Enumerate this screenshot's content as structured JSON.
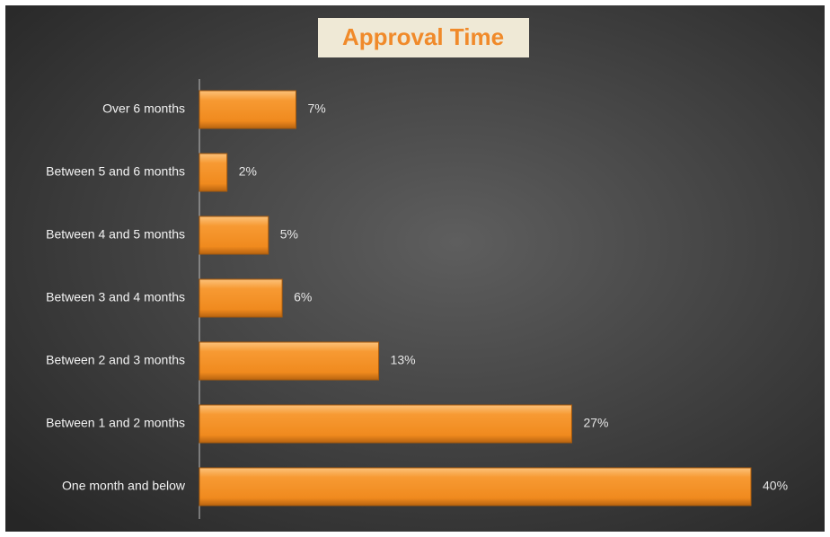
{
  "chart_data": {
    "type": "bar",
    "orientation": "horizontal",
    "title": "Approval Time",
    "categories": [
      "Over 6 months",
      "Between 5 and 6 months",
      "Between 4 and 5 months",
      "Between 3 and 4 months",
      "Between 2 and 3 months",
      "Between 1 and 2 months",
      "One month and below"
    ],
    "values": [
      7,
      2,
      5,
      6,
      13,
      27,
      40
    ],
    "value_labels": [
      "7%",
      "2%",
      "5%",
      "6%",
      "13%",
      "27%",
      "40%"
    ],
    "color": "#f59a36"
  }
}
